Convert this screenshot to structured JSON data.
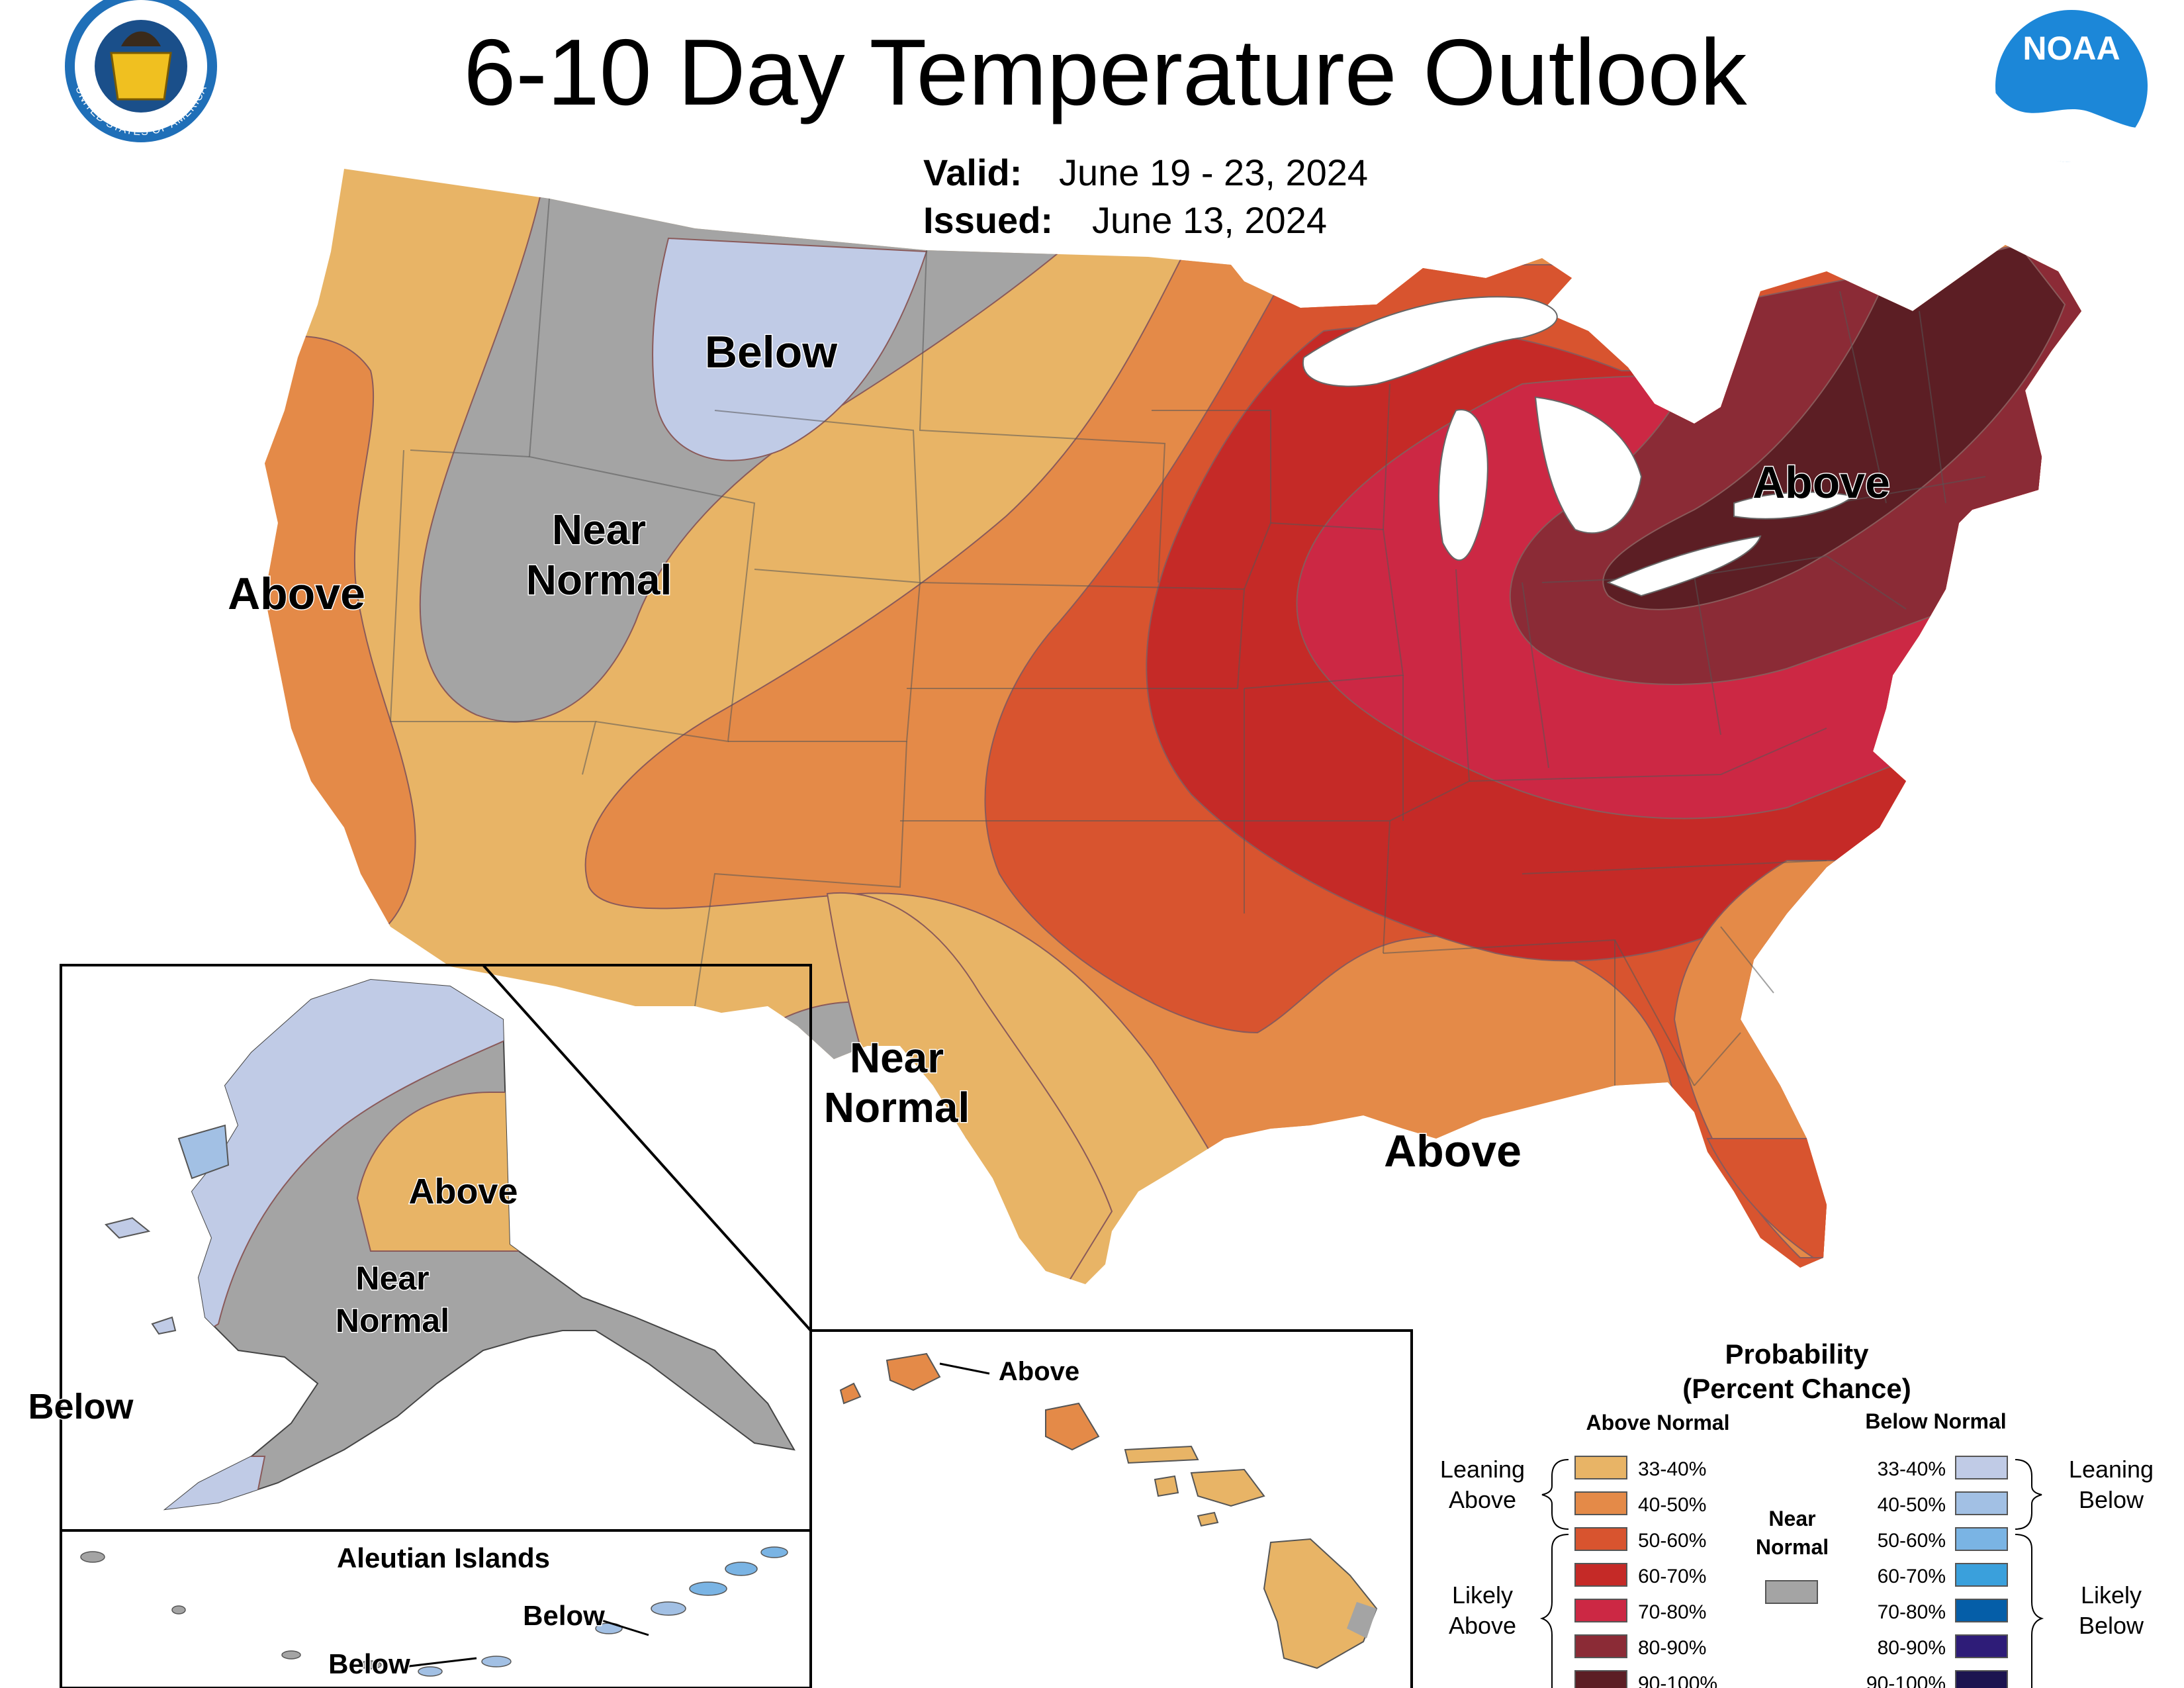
{
  "title": "6-10 Day Temperature Outlook",
  "valid": {
    "label": "Valid:",
    "value": "June 19 - 23, 2024"
  },
  "issued": {
    "label": "Issued:",
    "value": "June 13, 2024"
  },
  "logos": {
    "left": {
      "icon": "doc-seal-icon",
      "text_top": "DEPARTMENT OF COMMERCE",
      "text_bottom": "UNITED STATES OF AMERICA"
    },
    "right": {
      "icon": "noaa-logo-icon",
      "text": "NOAA"
    }
  },
  "colors": {
    "above_33_40": "#e8b466",
    "above_40_50": "#e48a48",
    "above_50_60": "#d8542f",
    "above_60_70": "#c52a27",
    "above_70_80": "#cc2844",
    "above_80_90": "#8b2b36",
    "above_90_100": "#5c1e24",
    "near_normal": "#a4a4a4",
    "below_33_40": "#c0cbe6",
    "below_40_50": "#a2c0e4",
    "below_50_60": "#7ab4e4",
    "below_60_70": "#3aa0dc",
    "below_70_80": "#055ea8",
    "below_80_90": "#2e1c78",
    "below_90_100": "#1c1450"
  },
  "map_labels": {
    "conus_below": "Below",
    "conus_near_normal_1": "Near",
    "conus_near_normal_2": "Normal",
    "conus_above_west": "Above",
    "conus_above_northeast": "Above",
    "conus_near_normal_tx_1": "Near",
    "conus_near_normal_tx_2": "Normal",
    "conus_above_south": "Above",
    "alaska_above": "Above",
    "alaska_near_normal_1": "Near",
    "alaska_near_normal_2": "Normal",
    "alaska_below": "Below",
    "aleutian_title": "Aleutian Islands",
    "aleutian_below_1": "Below",
    "aleutian_below_2": "Below",
    "hawaii_above": "Above"
  },
  "legend": {
    "title_1": "Probability",
    "title_2": "(Percent Chance)",
    "above_header": "Above Normal",
    "below_header": "Below Normal",
    "near_1": "Near",
    "near_2": "Normal",
    "leaning_above_1": "Leaning",
    "leaning_above_2": "Above",
    "likely_above_1": "Likely",
    "likely_above_2": "Above",
    "leaning_below_1": "Leaning",
    "leaning_below_2": "Below",
    "likely_below_1": "Likely",
    "likely_below_2": "Below",
    "above_items": [
      {
        "label": "33-40%",
        "color": "#e8b466"
      },
      {
        "label": "40-50%",
        "color": "#e48a48"
      },
      {
        "label": "50-60%",
        "color": "#d8542f"
      },
      {
        "label": "60-70%",
        "color": "#c52a27"
      },
      {
        "label": "70-80%",
        "color": "#cc2844"
      },
      {
        "label": "80-90%",
        "color": "#8b2b36"
      },
      {
        "label": "90-100%",
        "color": "#5c1e24"
      }
    ],
    "below_items": [
      {
        "label": "33-40%",
        "color": "#c0cbe6"
      },
      {
        "label": "40-50%",
        "color": "#a2c0e4"
      },
      {
        "label": "50-60%",
        "color": "#7ab4e4"
      },
      {
        "label": "60-70%",
        "color": "#3aa0dc"
      },
      {
        "label": "70-80%",
        "color": "#055ea8"
      },
      {
        "label": "80-90%",
        "color": "#2e1c78"
      },
      {
        "label": "90-100%",
        "color": "#1c1450"
      }
    ],
    "near_color": "#a4a4a4"
  }
}
